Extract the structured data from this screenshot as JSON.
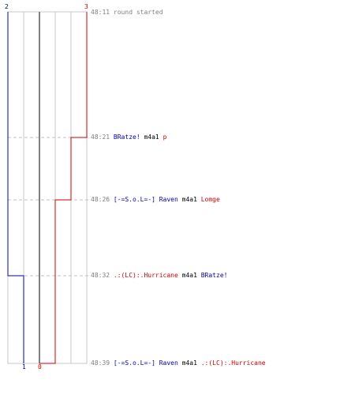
{
  "scores": {
    "blue_start": "2",
    "red_start": "3",
    "blue_end": "1",
    "red_end": "0"
  },
  "colors": {
    "blue": "#0000aa",
    "red": "#cc0000",
    "grid": "#c8c8c8",
    "axis": "#808080",
    "dash": "#c0c0c0",
    "text_gray": "#808080"
  },
  "events": [
    {
      "time": "48:11",
      "parts": [
        {
          "text": "round started",
          "color": "gray"
        }
      ]
    },
    {
      "time": "48:21",
      "parts": [
        {
          "text": "BRatze!",
          "color": "blue"
        },
        {
          "text": "m4a1",
          "color": "black"
        },
        {
          "text": "p",
          "color": "red"
        }
      ]
    },
    {
      "time": "48:26",
      "parts": [
        {
          "text": "[-=S.o.L=-] Raven",
          "color": "blue"
        },
        {
          "text": "m4a1",
          "color": "black"
        },
        {
          "text": "Lomge",
          "color": "red"
        }
      ]
    },
    {
      "time": "48:32",
      "parts": [
        {
          "text": ".:(LC):.Hurricane",
          "color": "red"
        },
        {
          "text": "m4a1",
          "color": "black"
        },
        {
          "text": "BRatze!",
          "color": "blue"
        }
      ]
    },
    {
      "time": "48:39",
      "parts": [
        {
          "text": "[-=S.o.L=-] Raven",
          "color": "blue"
        },
        {
          "text": "m4a1",
          "color": "black"
        },
        {
          "text": ".:(LC):.Hurricane",
          "color": "red"
        }
      ]
    }
  ]
}
